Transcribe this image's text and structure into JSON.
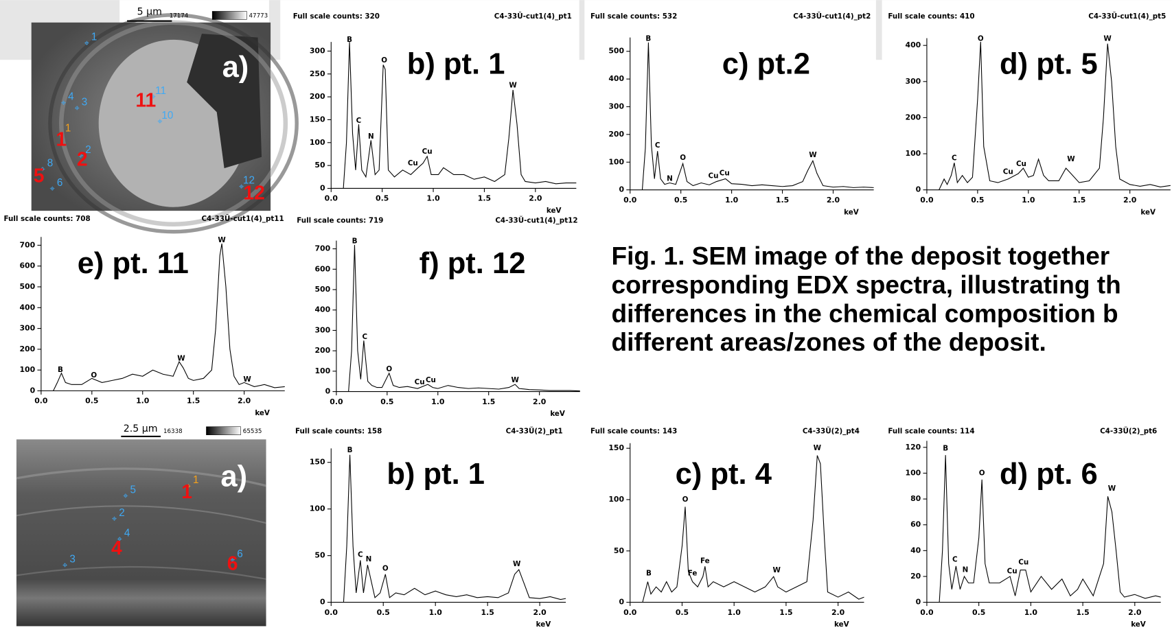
{
  "chart_data": [
    {
      "type": "line",
      "title": "Full scale counts: 320",
      "subtitle": "C4-33Ŭ-cut1(4)_pt1",
      "label": "b) pt. 1",
      "xlabel": "keV",
      "color": "#000000",
      "x": [
        0.12,
        0.15,
        0.18,
        0.21,
        0.24,
        0.27,
        0.3,
        0.34,
        0.39,
        0.43,
        0.47,
        0.51,
        0.53,
        0.56,
        0.62,
        0.7,
        0.78,
        0.85,
        0.9,
        0.94,
        0.98,
        1.05,
        1.1,
        1.2,
        1.3,
        1.4,
        1.5,
        1.6,
        1.7,
        1.74,
        1.78,
        1.82,
        1.86,
        1.9,
        2.0,
        2.1,
        2.2,
        2.3,
        2.4
      ],
      "values": [
        0,
        100,
        320,
        120,
        40,
        140,
        40,
        25,
        105,
        30,
        40,
        270,
        260,
        40,
        25,
        40,
        30,
        45,
        55,
        70,
        30,
        30,
        45,
        30,
        30,
        20,
        25,
        15,
        30,
        110,
        215,
        140,
        30,
        15,
        12,
        15,
        10,
        12,
        12
      ],
      "xlim": [
        0,
        2.4
      ],
      "ylim": [
        0,
        320
      ],
      "xticks": [
        {
          "value": 0,
          "label": "0.0"
        },
        0.5,
        {
          "value": 1,
          "label": "1.0"
        },
        1.5,
        {
          "value": 2,
          "label": "2.0"
        }
      ],
      "yticks": [
        0,
        50,
        100,
        150,
        200,
        250,
        300
      ],
      "annotations": [
        {
          "text": "B",
          "x": 0.18,
          "y": 325
        },
        {
          "text": "C",
          "x": 0.27,
          "y": 148
        },
        {
          "text": "N",
          "x": 0.39,
          "y": 113
        },
        {
          "text": "O",
          "x": 0.52,
          "y": 280
        },
        {
          "text": "Cu",
          "x": 0.8,
          "y": 55
        },
        {
          "text": "Cu",
          "x": 0.94,
          "y": 80
        },
        {
          "text": "W",
          "x": 1.78,
          "y": 225
        }
      ]
    },
    {
      "type": "line",
      "title": "Full scale counts: 532",
      "subtitle": "C4-33Ŭ-cut1(4)_pt2",
      "label": "c) pt.2",
      "xlabel": "keV",
      "color": "#000000",
      "x": [
        0.12,
        0.15,
        0.18,
        0.21,
        0.24,
        0.27,
        0.3,
        0.34,
        0.39,
        0.45,
        0.52,
        0.56,
        0.62,
        0.7,
        0.78,
        0.85,
        0.94,
        1.0,
        1.1,
        1.2,
        1.3,
        1.4,
        1.5,
        1.6,
        1.7,
        1.75,
        1.8,
        1.84,
        1.9,
        2.0,
        2.1,
        2.2,
        2.3,
        2.4
      ],
      "values": [
        0,
        150,
        532,
        160,
        40,
        140,
        40,
        20,
        25,
        20,
        95,
        30,
        15,
        25,
        18,
        30,
        40,
        22,
        20,
        15,
        18,
        15,
        12,
        15,
        30,
        70,
        105,
        60,
        15,
        10,
        12,
        8,
        10,
        8
      ],
      "xlim": [
        0,
        2.4
      ],
      "ylim": [
        0,
        550
      ],
      "xticks": [
        {
          "value": 0,
          "label": "0.0"
        },
        0.5,
        {
          "value": 1,
          "label": "1.0"
        },
        1.5,
        {
          "value": 2,
          "label": "2.0"
        }
      ],
      "yticks": [
        0,
        100,
        200,
        300,
        400,
        500
      ],
      "annotations": [
        {
          "text": "B",
          "x": 0.18,
          "y": 545
        },
        {
          "text": "C",
          "x": 0.27,
          "y": 160
        },
        {
          "text": "N",
          "x": 0.39,
          "y": 40
        },
        {
          "text": "O",
          "x": 0.52,
          "y": 115
        },
        {
          "text": "Cu",
          "x": 0.82,
          "y": 50
        },
        {
          "text": "Cu",
          "x": 0.93,
          "y": 60
        },
        {
          "text": "W",
          "x": 1.8,
          "y": 125
        }
      ]
    },
    {
      "type": "line",
      "title": "Full scale counts: 410",
      "subtitle": "C4-33Ŭ-cut1(4)_pt5",
      "label": "d) pt. 5",
      "xlabel": "keV",
      "color": "#000000",
      "x": [
        0.12,
        0.17,
        0.2,
        0.24,
        0.27,
        0.3,
        0.35,
        0.4,
        0.45,
        0.5,
        0.53,
        0.56,
        0.62,
        0.7,
        0.8,
        0.9,
        0.95,
        1.0,
        1.05,
        1.1,
        1.15,
        1.2,
        1.3,
        1.37,
        1.42,
        1.5,
        1.6,
        1.7,
        1.74,
        1.78,
        1.82,
        1.86,
        1.9,
        2.0,
        2.1,
        2.2,
        2.3,
        2.4
      ],
      "values": [
        0,
        30,
        15,
        40,
        75,
        20,
        40,
        20,
        35,
        250,
        410,
        120,
        25,
        20,
        30,
        45,
        60,
        35,
        40,
        85,
        40,
        25,
        25,
        60,
        45,
        20,
        25,
        60,
        200,
        405,
        300,
        120,
        30,
        15,
        10,
        15,
        8,
        12
      ],
      "xlim": [
        0,
        2.4
      ],
      "ylim": [
        0,
        420
      ],
      "xticks": [
        {
          "value": 0,
          "label": "0.0"
        },
        0.5,
        {
          "value": 1,
          "label": "1.0"
        },
        1.5,
        {
          "value": 2,
          "label": "2.0"
        }
      ],
      "yticks": [
        0,
        100,
        200,
        300,
        400
      ],
      "annotations": [
        {
          "text": "C",
          "x": 0.27,
          "y": 88
        },
        {
          "text": "O",
          "x": 0.53,
          "y": 418
        },
        {
          "text": "Cu",
          "x": 0.8,
          "y": 50
        },
        {
          "text": "Cu",
          "x": 0.93,
          "y": 72
        },
        {
          "text": "W",
          "x": 1.42,
          "y": 85
        },
        {
          "text": "W",
          "x": 1.78,
          "y": 418
        }
      ]
    },
    {
      "type": "line",
      "title": "Full scale counts: 708",
      "subtitle": "C4-33Ŭ-cut1(4)_pt11",
      "label": "e) pt. 11",
      "xlabel": "keV",
      "color": "#000000",
      "x": [
        0.12,
        0.16,
        0.2,
        0.24,
        0.3,
        0.4,
        0.5,
        0.6,
        0.7,
        0.8,
        0.9,
        1.0,
        1.1,
        1.2,
        1.3,
        1.36,
        1.4,
        1.45,
        1.5,
        1.6,
        1.68,
        1.72,
        1.76,
        1.78,
        1.82,
        1.86,
        1.9,
        1.95,
        2.0,
        2.1,
        2.2,
        2.3,
        2.4
      ],
      "values": [
        0,
        40,
        85,
        40,
        30,
        30,
        60,
        40,
        50,
        60,
        80,
        70,
        100,
        80,
        70,
        140,
        110,
        60,
        50,
        60,
        100,
        300,
        650,
        708,
        500,
        200,
        70,
        30,
        40,
        20,
        30,
        15,
        20
      ],
      "xlim": [
        0,
        2.4
      ],
      "ylim": [
        0,
        740
      ],
      "xticks": [
        {
          "value": 0,
          "label": "0.0"
        },
        0.5,
        {
          "value": 1,
          "label": "1.0"
        },
        1.5,
        {
          "value": 2,
          "label": "2.0"
        }
      ],
      "yticks": [
        0,
        100,
        200,
        300,
        400,
        500,
        600,
        700
      ],
      "annotations": [
        {
          "text": "B",
          "x": 0.19,
          "y": 100
        },
        {
          "text": "O",
          "x": 0.52,
          "y": 75
        },
        {
          "text": "W",
          "x": 1.38,
          "y": 155
        },
        {
          "text": "W",
          "x": 1.78,
          "y": 725
        },
        {
          "text": "W",
          "x": 2.03,
          "y": 55
        }
      ]
    },
    {
      "type": "line",
      "title": "Full scale counts: 719",
      "subtitle": "C4-33Ŭ-cut1(4)_pt12",
      "label": "f) pt. 12",
      "xlabel": "keV",
      "color": "#000000",
      "x": [
        0.12,
        0.15,
        0.18,
        0.21,
        0.24,
        0.27,
        0.31,
        0.35,
        0.4,
        0.45,
        0.52,
        0.56,
        0.62,
        0.7,
        0.8,
        0.9,
        0.95,
        1.0,
        1.1,
        1.2,
        1.3,
        1.4,
        1.5,
        1.6,
        1.7,
        1.76,
        1.8,
        1.9,
        2.0,
        2.1,
        2.2,
        2.3,
        2.4
      ],
      "values": [
        0,
        200,
        719,
        200,
        60,
        250,
        50,
        30,
        20,
        20,
        90,
        30,
        20,
        25,
        15,
        35,
        20,
        15,
        30,
        20,
        15,
        18,
        15,
        12,
        20,
        35,
        15,
        10,
        8,
        5,
        5,
        5,
        3
      ],
      "xlim": [
        0,
        2.4
      ],
      "ylim": [
        0,
        740
      ],
      "xticks": [
        {
          "value": 0,
          "label": "0.0"
        },
        0.5,
        {
          "value": 1,
          "label": "1.0"
        },
        1.5,
        {
          "value": 2,
          "label": "2.0"
        }
      ],
      "yticks": [
        0,
        100,
        200,
        300,
        400,
        500,
        600,
        700
      ],
      "annotations": [
        {
          "text": "B",
          "x": 0.18,
          "y": 738
        },
        {
          "text": "C",
          "x": 0.28,
          "y": 268
        },
        {
          "text": "O",
          "x": 0.52,
          "y": 110
        },
        {
          "text": "Cu",
          "x": 0.82,
          "y": 45
        },
        {
          "text": "Cu",
          "x": 0.93,
          "y": 55
        },
        {
          "text": "W",
          "x": 1.76,
          "y": 55
        }
      ]
    },
    {
      "type": "line",
      "title": "Full scale counts: 158",
      "subtitle": "C4-33Ŭ(2)_pt1",
      "label": "b) pt. 1",
      "xlabel": "keV",
      "color": "#000000",
      "x": [
        0.12,
        0.15,
        0.18,
        0.21,
        0.24,
        0.28,
        0.31,
        0.35,
        0.38,
        0.42,
        0.47,
        0.52,
        0.56,
        0.62,
        0.7,
        0.8,
        0.9,
        1.0,
        1.1,
        1.2,
        1.3,
        1.4,
        1.5,
        1.6,
        1.7,
        1.76,
        1.8,
        1.85,
        1.9,
        2.0,
        2.1,
        2.2,
        2.25
      ],
      "values": [
        0,
        60,
        158,
        60,
        10,
        45,
        10,
        40,
        25,
        5,
        10,
        30,
        5,
        10,
        8,
        15,
        8,
        12,
        8,
        6,
        8,
        5,
        6,
        5,
        10,
        30,
        35,
        20,
        5,
        4,
        6,
        3,
        4
      ],
      "xlim": [
        0,
        2.25
      ],
      "ylim": [
        0,
        165
      ],
      "xticks": [
        {
          "value": 0,
          "label": "0.0"
        },
        0.5,
        {
          "value": 1,
          "label": "1.0"
        },
        1.5,
        {
          "value": 2,
          "label": "2.0"
        }
      ],
      "yticks": [
        0,
        50,
        100,
        150
      ],
      "annotations": [
        {
          "text": "B",
          "x": 0.18,
          "y": 163
        },
        {
          "text": "C",
          "x": 0.28,
          "y": 51
        },
        {
          "text": "N",
          "x": 0.36,
          "y": 46
        },
        {
          "text": "O",
          "x": 0.52,
          "y": 36
        },
        {
          "text": "W",
          "x": 1.78,
          "y": 41
        }
      ]
    },
    {
      "type": "line",
      "title": "Full scale counts: 143",
      "subtitle": "C4-33Ŭ(2)_pt4",
      "label": "c) pt. 4",
      "xlabel": "keV",
      "color": "#000000",
      "x": [
        0.12,
        0.17,
        0.2,
        0.25,
        0.3,
        0.35,
        0.4,
        0.45,
        0.5,
        0.53,
        0.56,
        0.6,
        0.65,
        0.7,
        0.72,
        0.75,
        0.8,
        0.9,
        1.0,
        1.1,
        1.2,
        1.3,
        1.38,
        1.42,
        1.5,
        1.6,
        1.7,
        1.76,
        1.8,
        1.83,
        1.87,
        1.9,
        2.0,
        2.1,
        2.2,
        2.25
      ],
      "values": [
        0,
        20,
        8,
        15,
        10,
        20,
        10,
        15,
        55,
        93,
        30,
        20,
        15,
        25,
        35,
        15,
        20,
        15,
        20,
        15,
        10,
        15,
        25,
        15,
        10,
        15,
        20,
        80,
        143,
        135,
        60,
        10,
        5,
        10,
        3,
        5
      ],
      "xlim": [
        0,
        2.25
      ],
      "ylim": [
        0,
        155
      ],
      "xticks": [
        {
          "value": 0,
          "label": "0.0"
        },
        0.5,
        {
          "value": 1,
          "label": "1.0"
        },
        1.5,
        {
          "value": 2,
          "label": "2.0"
        }
      ],
      "yticks": [
        0,
        50,
        100,
        150
      ],
      "annotations": [
        {
          "text": "B",
          "x": 0.18,
          "y": 28
        },
        {
          "text": "O",
          "x": 0.53,
          "y": 100
        },
        {
          "text": "Fe",
          "x": 0.6,
          "y": 28
        },
        {
          "text": "Fe",
          "x": 0.72,
          "y": 40
        },
        {
          "text": "W",
          "x": 1.41,
          "y": 31
        },
        {
          "text": "W",
          "x": 1.8,
          "y": 150
        }
      ]
    },
    {
      "type": "line",
      "title": "Full scale counts: 114",
      "subtitle": "C4-33Ŭ(2)_pt6",
      "label": "d) pt. 6",
      "xlabel": "keV",
      "color": "#000000",
      "x": [
        0.12,
        0.15,
        0.18,
        0.21,
        0.24,
        0.28,
        0.32,
        0.36,
        0.4,
        0.45,
        0.5,
        0.53,
        0.56,
        0.6,
        0.7,
        0.8,
        0.85,
        0.9,
        0.95,
        1.0,
        1.1,
        1.2,
        1.3,
        1.38,
        1.45,
        1.5,
        1.6,
        1.7,
        1.74,
        1.78,
        1.82,
        1.86,
        1.9,
        2.0,
        2.1,
        2.2,
        2.25
      ],
      "values": [
        0,
        40,
        114,
        30,
        10,
        28,
        10,
        20,
        15,
        15,
        50,
        95,
        30,
        15,
        15,
        20,
        5,
        25,
        25,
        8,
        20,
        10,
        18,
        5,
        10,
        18,
        5,
        30,
        82,
        70,
        40,
        8,
        4,
        6,
        3,
        5,
        4
      ],
      "xlim": [
        0,
        2.25
      ],
      "ylim": [
        0,
        125
      ],
      "xticks": [
        {
          "value": 0,
          "label": "0.0"
        },
        0.5,
        {
          "value": 1,
          "label": "1.0"
        },
        1.5,
        {
          "value": 2,
          "label": "2.0"
        }
      ],
      "yticks": [
        0,
        20,
        40,
        60,
        80,
        100,
        120
      ],
      "annotations": [
        {
          "text": "B",
          "x": 0.18,
          "y": 119
        },
        {
          "text": "C",
          "x": 0.27,
          "y": 33
        },
        {
          "text": "N",
          "x": 0.37,
          "y": 25
        },
        {
          "text": "O",
          "x": 0.53,
          "y": 100
        },
        {
          "text": "Cu",
          "x": 0.82,
          "y": 24
        },
        {
          "text": "Cu",
          "x": 0.93,
          "y": 31
        },
        {
          "text": "W",
          "x": 1.78,
          "y": 88
        }
      ]
    }
  ],
  "sem_images": [
    {
      "scale_bar": "5 µm",
      "color_min": "17174",
      "color_max": "47773",
      "label": "a)",
      "points": [
        {
          "text": "1",
          "color": "#3fa9f5"
        },
        {
          "text": "4",
          "color": "#3fa9f5"
        },
        {
          "text": "3",
          "color": "#3fa9f5"
        },
        {
          "text": "11",
          "color": "#3fa9f5"
        },
        {
          "text": "10",
          "color": "#3fa9f5"
        },
        {
          "text": "2",
          "color": "#3fa9f5"
        },
        {
          "text": "8",
          "color": "#3fa9f5"
        },
        {
          "text": "6",
          "color": "#3fa9f5"
        },
        {
          "text": "12",
          "color": "#3fa9f5"
        },
        {
          "text": "1",
          "color": "#f7a21b"
        },
        {
          "text": "11",
          "color": "#ee1111"
        },
        {
          "text": "1",
          "color": "#ee1111"
        },
        {
          "text": "2",
          "color": "#ee1111"
        },
        {
          "text": "5",
          "color": "#ee1111"
        },
        {
          "text": "12",
          "color": "#ee1111"
        }
      ]
    },
    {
      "scale_bar": "2.5 µm",
      "color_min": "16338",
      "color_max": "65535",
      "label": "a)",
      "points": [
        {
          "text": "5",
          "color": "#3fa9f5"
        },
        {
          "text": "2",
          "color": "#3fa9f5"
        },
        {
          "text": "4",
          "color": "#3fa9f5"
        },
        {
          "text": "3",
          "color": "#3fa9f5"
        },
        {
          "text": "6",
          "color": "#3fa9f5"
        },
        {
          "text": "1",
          "color": "#f7a21b"
        },
        {
          "text": "1",
          "color": "#ee1111"
        },
        {
          "text": "4",
          "color": "#ee1111"
        },
        {
          "text": "6",
          "color": "#ee1111"
        }
      ]
    }
  ],
  "caption": [
    "Fig. 1. SEM image of the deposit together",
    "corresponding EDX spectra, illustrating th",
    "differences in the chemical composition b",
    "different areas/zones of the deposit."
  ]
}
